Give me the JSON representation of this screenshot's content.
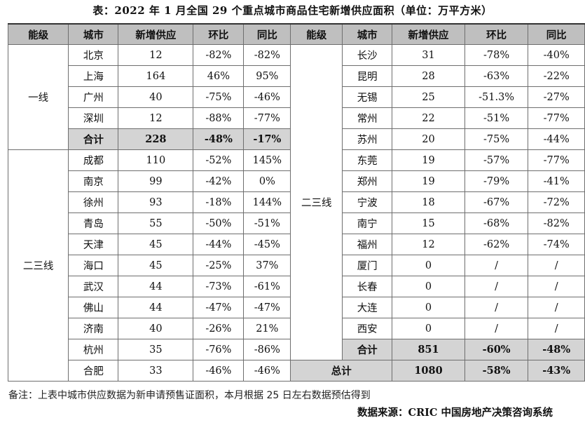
{
  "title": "表：2022 年 1 月全国 29 个重点城市商品住宅新增供应面积（单位：万平方米）",
  "headers": [
    "能级",
    "城市",
    "新增供应",
    "环比",
    "同比"
  ],
  "left": {
    "tier1_label": "一线",
    "tier1_rows": [
      {
        "city": "北京",
        "supply": "12",
        "mom": "-82%",
        "yoy": "-82%"
      },
      {
        "city": "上海",
        "supply": "164",
        "mom": "46%",
        "yoy": "95%"
      },
      {
        "city": "广州",
        "supply": "40",
        "mom": "-75%",
        "yoy": "-46%"
      },
      {
        "city": "深圳",
        "supply": "12",
        "mom": "-88%",
        "yoy": "-77%"
      }
    ],
    "tier1_total": {
      "city": "合计",
      "supply": "228",
      "mom": "-48%",
      "yoy": "-17%"
    },
    "tier23_label": "二三线",
    "tier23_rows": [
      {
        "city": "成都",
        "supply": "110",
        "mom": "-52%",
        "yoy": "145%"
      },
      {
        "city": "南京",
        "supply": "99",
        "mom": "-42%",
        "yoy": "0%"
      },
      {
        "city": "徐州",
        "supply": "93",
        "mom": "-18%",
        "yoy": "144%"
      },
      {
        "city": "青岛",
        "supply": "55",
        "mom": "-50%",
        "yoy": "-51%"
      },
      {
        "city": "天津",
        "supply": "45",
        "mom": "-44%",
        "yoy": "-45%"
      },
      {
        "city": "海口",
        "supply": "45",
        "mom": "-25%",
        "yoy": "37%"
      },
      {
        "city": "武汉",
        "supply": "44",
        "mom": "-73%",
        "yoy": "-61%"
      },
      {
        "city": "佛山",
        "supply": "44",
        "mom": "-47%",
        "yoy": "-47%"
      },
      {
        "city": "济南",
        "supply": "40",
        "mom": "-26%",
        "yoy": "21%"
      },
      {
        "city": "杭州",
        "supply": "35",
        "mom": "-76%",
        "yoy": "-86%"
      },
      {
        "city": "合肥",
        "supply": "33",
        "mom": "-46%",
        "yoy": "-46%"
      }
    ]
  },
  "right": {
    "tier23_label": "二三线",
    "rows": [
      {
        "city": "长沙",
        "supply": "31",
        "mom": "-78%",
        "yoy": "-40%"
      },
      {
        "city": "昆明",
        "supply": "28",
        "mom": "-63%",
        "yoy": "-22%"
      },
      {
        "city": "无锡",
        "supply": "25",
        "mom": "-51.3%",
        "yoy": "-27%"
      },
      {
        "city": "常州",
        "supply": "22",
        "mom": "-51%",
        "yoy": "-77%"
      },
      {
        "city": "苏州",
        "supply": "20",
        "mom": "-75%",
        "yoy": "-44%"
      },
      {
        "city": "东莞",
        "supply": "19",
        "mom": "-57%",
        "yoy": "-77%"
      },
      {
        "city": "郑州",
        "supply": "19",
        "mom": "-79%",
        "yoy": "-41%"
      },
      {
        "city": "宁波",
        "supply": "18",
        "mom": "-67%",
        "yoy": "-72%"
      },
      {
        "city": "南宁",
        "supply": "15",
        "mom": "-68%",
        "yoy": "-82%"
      },
      {
        "city": "福州",
        "supply": "12",
        "mom": "-62%",
        "yoy": "-74%"
      },
      {
        "city": "厦门",
        "supply": "0",
        "mom": "/",
        "yoy": "/"
      },
      {
        "city": "长春",
        "supply": "0",
        "mom": "/",
        "yoy": "/"
      },
      {
        "city": "大连",
        "supply": "0",
        "mom": "/",
        "yoy": "/"
      },
      {
        "city": "西安",
        "supply": "0",
        "mom": "/",
        "yoy": "/"
      }
    ],
    "tier23_total": {
      "city": "合计",
      "supply": "851",
      "mom": "-60%",
      "yoy": "-48%"
    },
    "grand_total": {
      "label": "总计",
      "supply": "1080",
      "mom": "-58%",
      "yoy": "-43%"
    }
  },
  "note": "备注：上表中城市供应数据为新申请预售证面积，本月根据 25 日左右数据预估得到",
  "source": "数据来源：CRIC 中国房地产决策咨询系统"
}
